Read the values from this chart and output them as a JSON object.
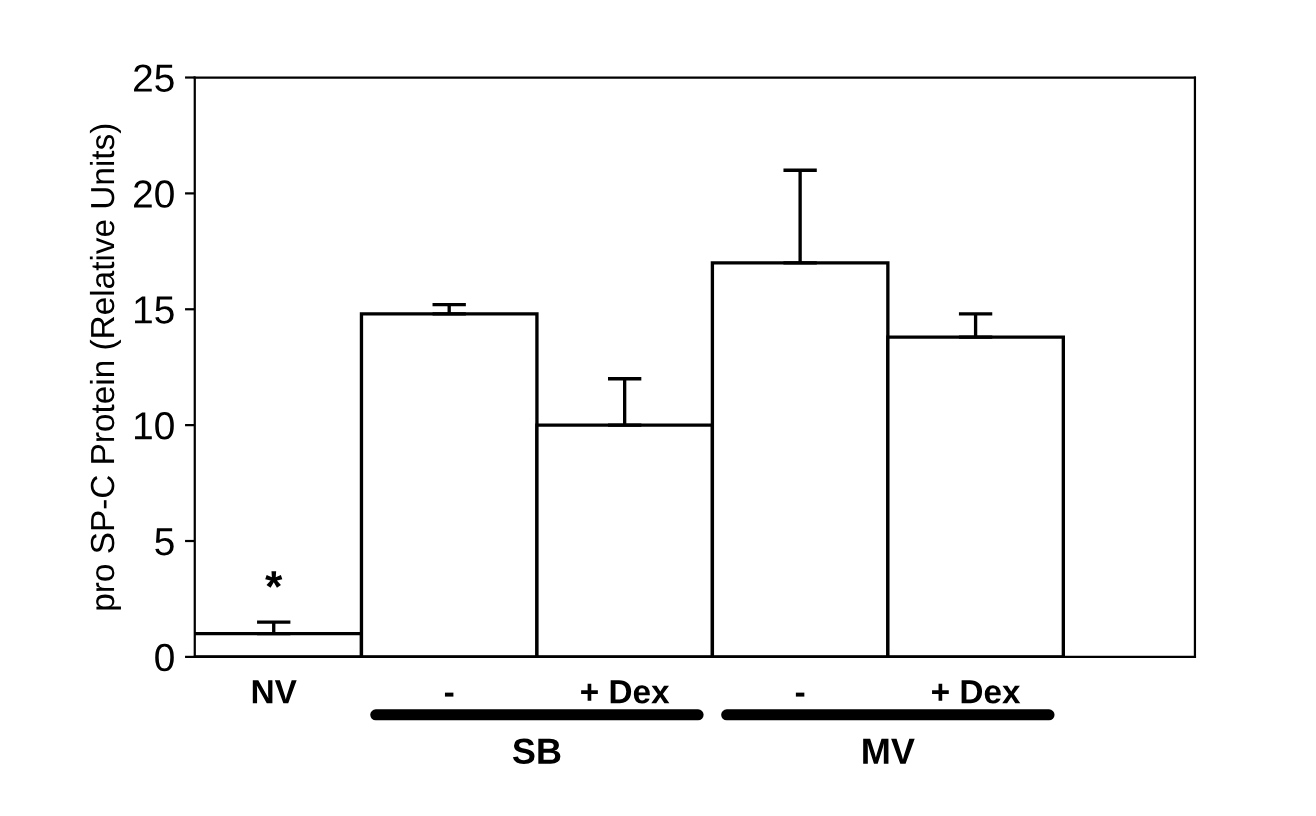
{
  "chart_data": {
    "type": "bar",
    "ylabel": "pro SP-C Protein (Relative Units)",
    "categories": [
      "NV",
      "-",
      "+ Dex",
      "-",
      "+ Dex"
    ],
    "values": [
      1.0,
      14.8,
      10.0,
      17.0,
      13.8
    ],
    "errors": [
      [
        1.0,
        1.5
      ],
      [
        14.8,
        15.2
      ],
      [
        10.0,
        12.0
      ],
      [
        17.0,
        21.0
      ],
      [
        13.8,
        14.8
      ]
    ],
    "color": "#ffffff",
    "ylim": [
      0,
      25
    ],
    "yticks": [
      0,
      5,
      10,
      15,
      20,
      25
    ],
    "grid": false,
    "annotations": [
      {
        "text": "*",
        "x": "NV",
        "y": 1.5
      },
      "SB",
      "MV"
    ]
  }
}
